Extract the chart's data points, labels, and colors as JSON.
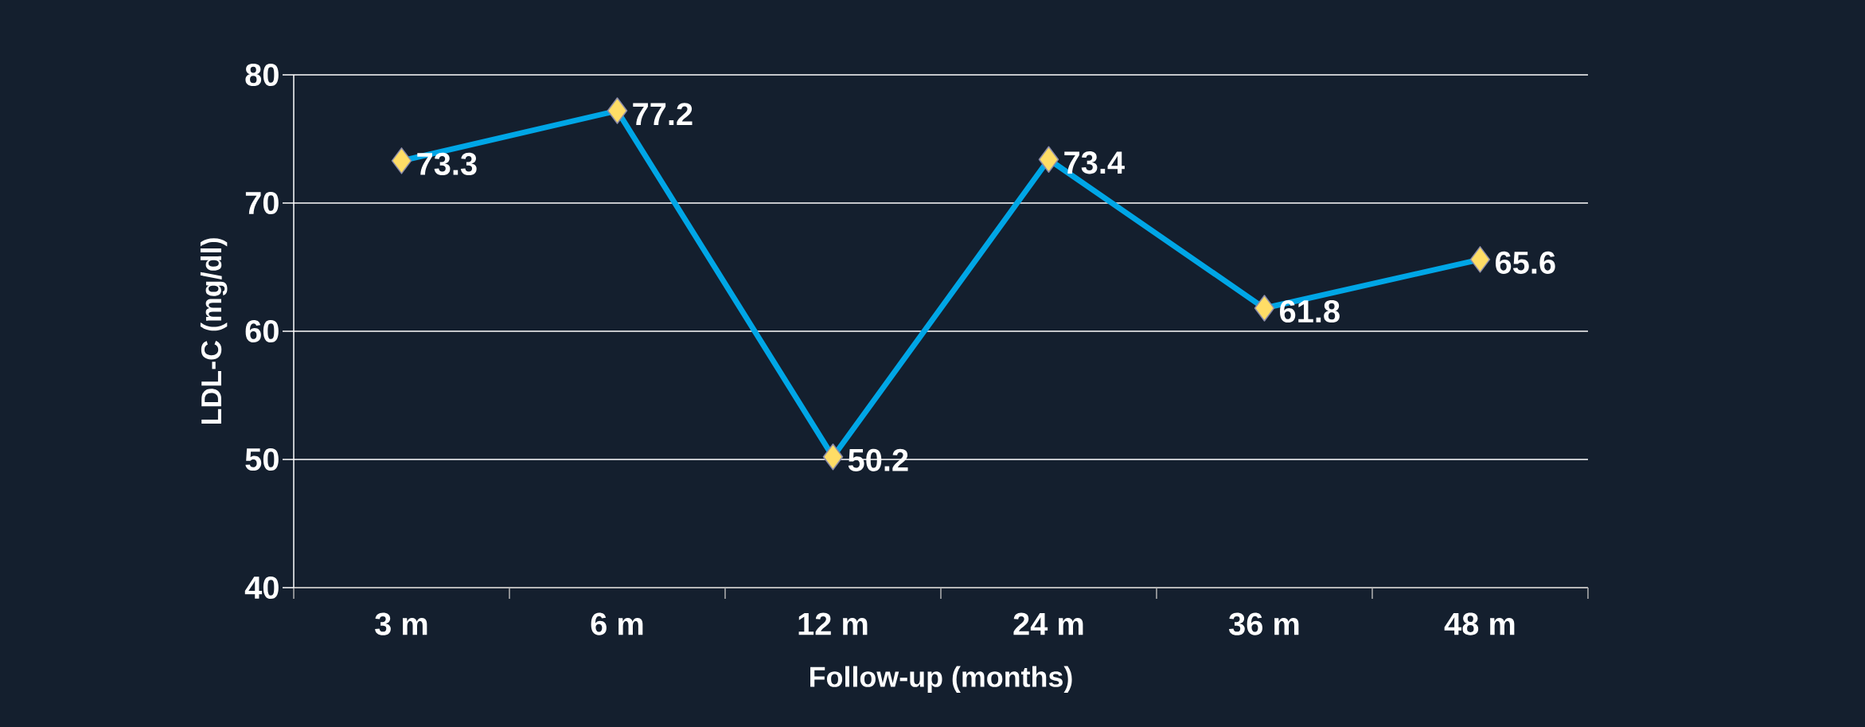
{
  "chart_data": {
    "type": "line",
    "xlabel": "Follow-up (months)",
    "ylabel": "LDL-C (mg/dl)",
    "categories": [
      "3 m",
      "6 m",
      "12 m",
      "24 m",
      "36 m",
      "48 m"
    ],
    "series": [
      {
        "color": "#00a6e6",
        "values": [
          73.3,
          77.2,
          50.2,
          73.4,
          61.8,
          65.6
        ]
      }
    ],
    "ylim": [
      40,
      80
    ],
    "yticks": [
      40,
      50,
      60,
      70,
      80
    ],
    "grid": "y",
    "marker": "diamond",
    "line_style": "solid",
    "data_labels": true
  }
}
